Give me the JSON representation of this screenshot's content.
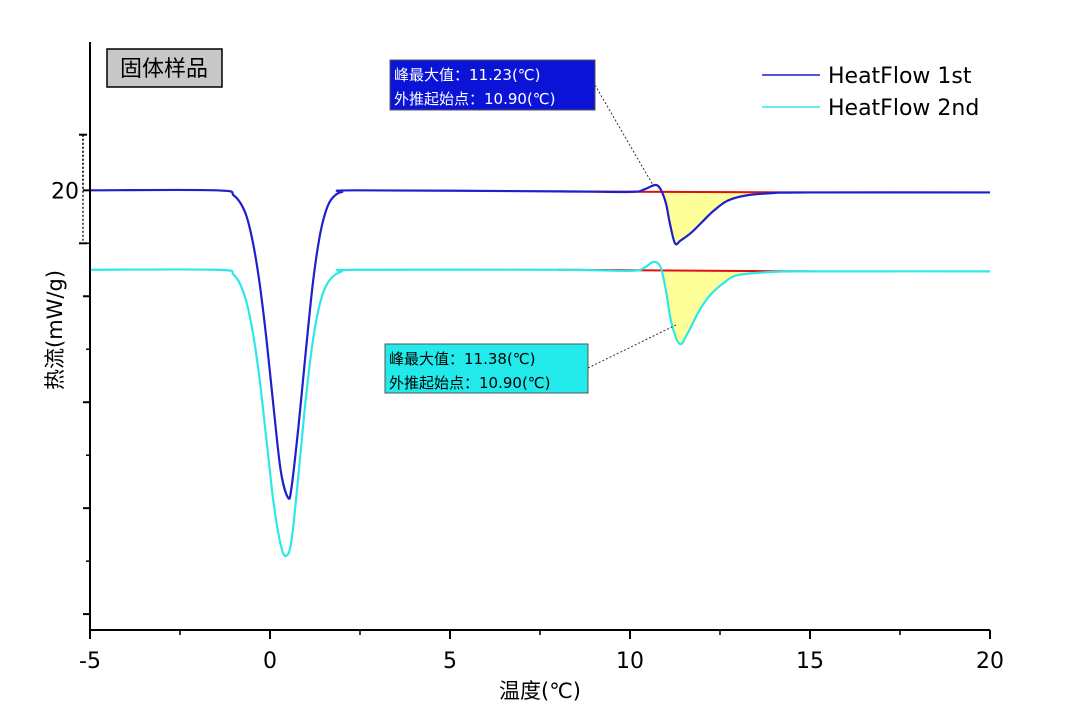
{
  "chart_data": {
    "type": "line",
    "sample_label": "固体样品",
    "xlabel": "温度(℃)",
    "ylabel": "热流(mW/g)",
    "xlim": [
      -5,
      20
    ],
    "ylim": [
      -8,
      103
    ],
    "xticks": [
      -5,
      0,
      5,
      10,
      15,
      20
    ],
    "xtick_labels": [
      "-5",
      "0",
      "5",
      "10",
      "15",
      "20"
    ],
    "ytick_labels": [
      {
        "value": 20,
        "label": "20"
      }
    ],
    "yticks_major": [
      20,
      40,
      60,
      80,
      100
    ],
    "yticks_minor": [
      30,
      50,
      70,
      90
    ],
    "scale_bar": {
      "from": 9.5,
      "to": 20
    },
    "legend_position": "top-right",
    "series": [
      {
        "name": "HeatFlow 1st",
        "color": "#1f1fcc",
        "points": [
          [
            -5,
            20
          ],
          [
            -1.5,
            20
          ],
          [
            -1,
            21
          ],
          [
            -0.7,
            24
          ],
          [
            -0.5,
            29
          ],
          [
            -0.3,
            37
          ],
          [
            -0.1,
            48
          ],
          [
            0.1,
            61
          ],
          [
            0.3,
            73
          ],
          [
            0.5,
            78
          ],
          [
            0.6,
            76
          ],
          [
            0.8,
            64
          ],
          [
            1,
            50
          ],
          [
            1.2,
            37
          ],
          [
            1.4,
            28
          ],
          [
            1.6,
            23
          ],
          [
            1.8,
            21
          ],
          [
            2,
            20.3
          ],
          [
            2.4,
            20
          ],
          [
            8,
            20.2
          ],
          [
            10,
            20.3
          ],
          [
            10.4,
            19.8
          ],
          [
            10.7,
            19.0
          ],
          [
            10.85,
            19.8
          ],
          [
            11.0,
            22.5
          ],
          [
            11.1,
            26
          ],
          [
            11.25,
            30
          ],
          [
            11.4,
            29.5
          ],
          [
            11.7,
            28
          ],
          [
            12.0,
            26
          ],
          [
            12.3,
            24
          ],
          [
            12.7,
            22
          ],
          [
            13.2,
            21
          ],
          [
            14,
            20.5
          ],
          [
            15,
            20.4
          ],
          [
            20,
            20.4
          ]
        ],
        "fill_region": [
          10.75,
          14.5
        ],
        "baseline": [
          [
            8,
            20.2
          ],
          [
            15,
            20.4
          ]
        ],
        "peak_label": "峰最大值：11.23(℃)",
        "onset_label": "外推起始点：10.90(℃)",
        "annotation_bg": "#0b14d6",
        "annotation_text_color": "#ffffff"
      },
      {
        "name": "HeatFlow 2nd",
        "color": "#2ee8e8",
        "points": [
          [
            -5,
            35
          ],
          [
            -1.5,
            35
          ],
          [
            -1,
            36
          ],
          [
            -0.7,
            40
          ],
          [
            -0.5,
            46
          ],
          [
            -0.3,
            55
          ],
          [
            -0.1,
            67
          ],
          [
            0.1,
            79
          ],
          [
            0.3,
            87
          ],
          [
            0.45,
            89
          ],
          [
            0.6,
            86
          ],
          [
            0.8,
            73
          ],
          [
            1,
            59
          ],
          [
            1.2,
            48
          ],
          [
            1.4,
            41
          ],
          [
            1.6,
            37.5
          ],
          [
            1.8,
            36
          ],
          [
            2,
            35.3
          ],
          [
            2.4,
            35
          ],
          [
            8,
            35
          ],
          [
            10,
            35.2
          ],
          [
            10.4,
            34.6
          ],
          [
            10.65,
            33.5
          ],
          [
            10.85,
            34.5
          ],
          [
            11.0,
            39
          ],
          [
            11.15,
            45
          ],
          [
            11.38,
            49
          ],
          [
            11.6,
            47
          ],
          [
            11.9,
            43
          ],
          [
            12.2,
            40
          ],
          [
            12.6,
            37.5
          ],
          [
            13.0,
            36
          ],
          [
            14,
            35.4
          ],
          [
            15,
            35.3
          ],
          [
            20,
            35.3
          ]
        ],
        "fill_region": [
          10.8,
          13.8
        ],
        "baseline": [
          [
            8,
            35
          ],
          [
            15,
            35.3
          ]
        ],
        "peak_label": "峰最大值：11.38(℃)",
        "onset_label": "外推起始点：10.90(℃)",
        "annotation_bg": "#22eaea",
        "annotation_text_color": "#000000"
      }
    ],
    "colors": {
      "baseline": "#e01010",
      "fill": "#ffff99",
      "sample_box_bg": "#c8c8c8"
    }
  }
}
